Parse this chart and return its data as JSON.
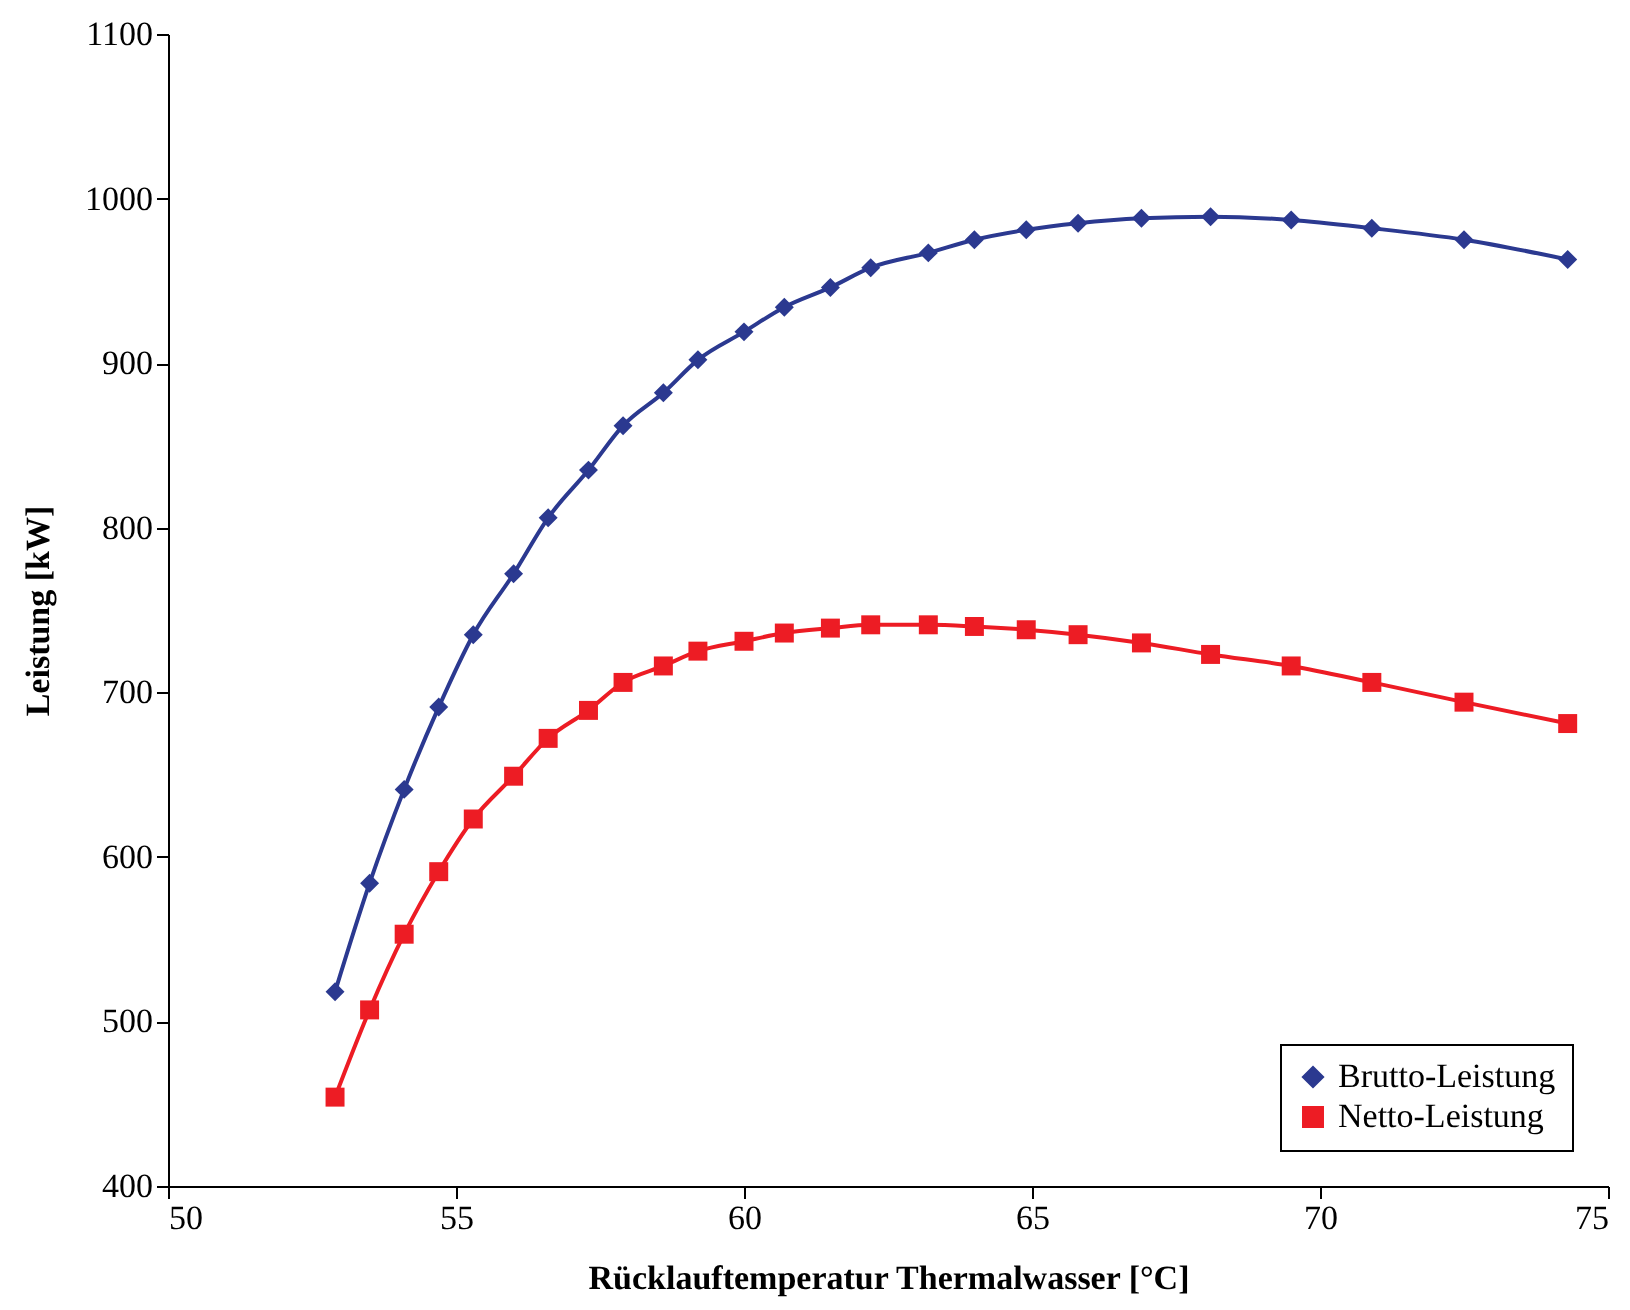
{
  "chart_data": {
    "type": "line",
    "xlabel": "Rücklauftemperatur Thermalwasser [°C]",
    "ylabel": "Leistung [kW]",
    "x": [
      52.9,
      53.5,
      54.1,
      54.7,
      55.3,
      56.0,
      56.6,
      57.3,
      57.9,
      58.6,
      59.2,
      60.0,
      60.7,
      61.5,
      62.2,
      63.2,
      64.0,
      64.9,
      65.8,
      66.9,
      68.1,
      69.5,
      70.9,
      72.5,
      74.3
    ],
    "series": [
      {
        "name": "Brutto-Leistung",
        "color": "#2b3990",
        "marker": "diamond",
        "values": [
          518,
          584,
          641,
          691,
          735,
          772,
          806,
          835,
          862,
          882,
          902,
          919,
          934,
          946,
          958,
          967,
          975,
          981,
          985,
          988,
          989,
          987,
          982,
          975,
          963
        ]
      },
      {
        "name": "Netto-Leistung",
        "color": "#ed1c24",
        "marker": "square",
        "values": [
          454,
          507,
          553,
          591,
          623,
          649,
          672,
          689,
          706,
          716,
          725,
          731,
          736,
          739,
          741,
          741,
          740,
          738,
          735,
          730,
          723,
          716,
          706,
          694,
          681
        ]
      }
    ],
    "xlim": [
      50,
      75
    ],
    "xticks": [
      50,
      55,
      60,
      65,
      70,
      75
    ],
    "ylim": [
      400,
      1100
    ],
    "yticks": [
      400,
      500,
      600,
      700,
      800,
      900,
      1000,
      1100
    ],
    "grid": false,
    "legend": "bottom right",
    "line_style": "solid"
  }
}
